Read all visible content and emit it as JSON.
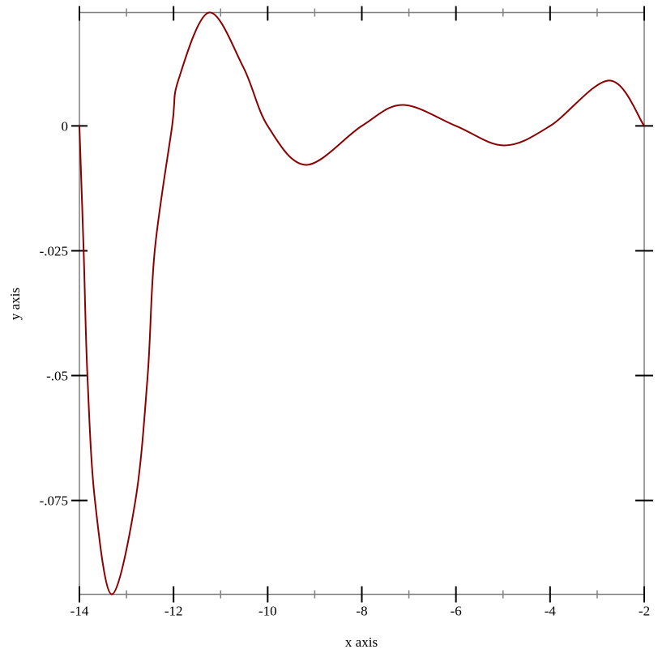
{
  "chart_data": {
    "type": "line",
    "title": "",
    "xlabel": "x axis",
    "ylabel": "y axis",
    "xlim": [
      -14,
      -2
    ],
    "ylim": [
      -0.0938,
      0.0227
    ],
    "grid": false,
    "x_ticks": [
      -14,
      -12,
      -10,
      -8,
      -6,
      -4,
      -2
    ],
    "x_tick_labels": [
      "-14",
      "-12",
      "-10",
      "-8",
      "-6",
      "-4",
      "-2"
    ],
    "x_minor_ticks": [
      -13,
      -11,
      -9,
      -7,
      -5,
      -3
    ],
    "y_ticks": [
      0,
      -0.025,
      -0.05,
      -0.075
    ],
    "y_tick_labels": [
      "0",
      "-.025",
      "-.05",
      "-.075"
    ],
    "series": [
      {
        "color": "#8b0000",
        "points": [
          [
            -14,
            0
          ],
          [
            -13.91,
            -0.025
          ],
          [
            -13.83,
            -0.05
          ],
          [
            -13.67,
            -0.075
          ],
          [
            -13.31,
            -0.0938
          ],
          [
            -12.81,
            -0.075
          ],
          [
            -12.55,
            -0.05
          ],
          [
            -12.4,
            -0.025
          ],
          [
            -12.03,
            0
          ],
          [
            -11.9,
            0.0091
          ],
          [
            -11.25,
            0.0227
          ],
          [
            -10.52,
            0.0118
          ],
          [
            -10.0,
            0
          ],
          [
            -9.18,
            -0.0078
          ],
          [
            -8.0,
            0
          ],
          [
            -7.13,
            0.0042
          ],
          [
            -6.0,
            0
          ],
          [
            -4.98,
            -0.0039
          ],
          [
            -4.0,
            0
          ],
          [
            -2.74,
            0.0091
          ],
          [
            -2,
            0
          ]
        ]
      }
    ]
  }
}
